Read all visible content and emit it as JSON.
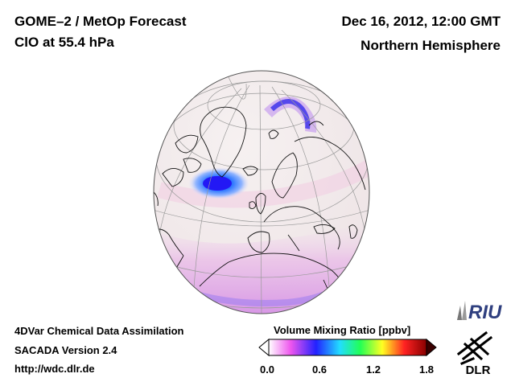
{
  "header": {
    "title_line1": "GOME–2 / MetOp Forecast",
    "title_line2": "ClO at 55.4 hPa",
    "date_line": "Dec 16, 2012, 12:00 GMT",
    "region": "Northern Hemisphere"
  },
  "footer": {
    "line1": "4DVar Chemical Data Assimilation",
    "line2": "SACADA Version 2.4",
    "line3": "http://wdc.dlr.de"
  },
  "colorbar": {
    "title": "Volume Mixing Ratio [ppbv]",
    "ticks": [
      "0.0",
      "0.6",
      "1.2",
      "1.8"
    ],
    "min": 0.0,
    "max": 1.8,
    "colors": [
      "#ffffff",
      "#ee55ee",
      "#2222ff",
      "#22ddff",
      "#22ff55",
      "#ffff22",
      "#ff2222",
      "#880000"
    ]
  },
  "logos": {
    "riu": "RIU",
    "dlr": "DLR"
  },
  "map": {
    "projection": "orthographic",
    "background_color": "#f4eeee",
    "features": [
      "coastlines",
      "graticule"
    ],
    "highlights": [
      {
        "region": "greenland-southeast",
        "value": 0.5,
        "color": "#2244ff"
      },
      {
        "region": "arctic-arc",
        "value": 0.4,
        "color": "#6655ee"
      },
      {
        "region": "tropical-band",
        "value": 0.2,
        "color": "#cc77ee"
      }
    ]
  }
}
